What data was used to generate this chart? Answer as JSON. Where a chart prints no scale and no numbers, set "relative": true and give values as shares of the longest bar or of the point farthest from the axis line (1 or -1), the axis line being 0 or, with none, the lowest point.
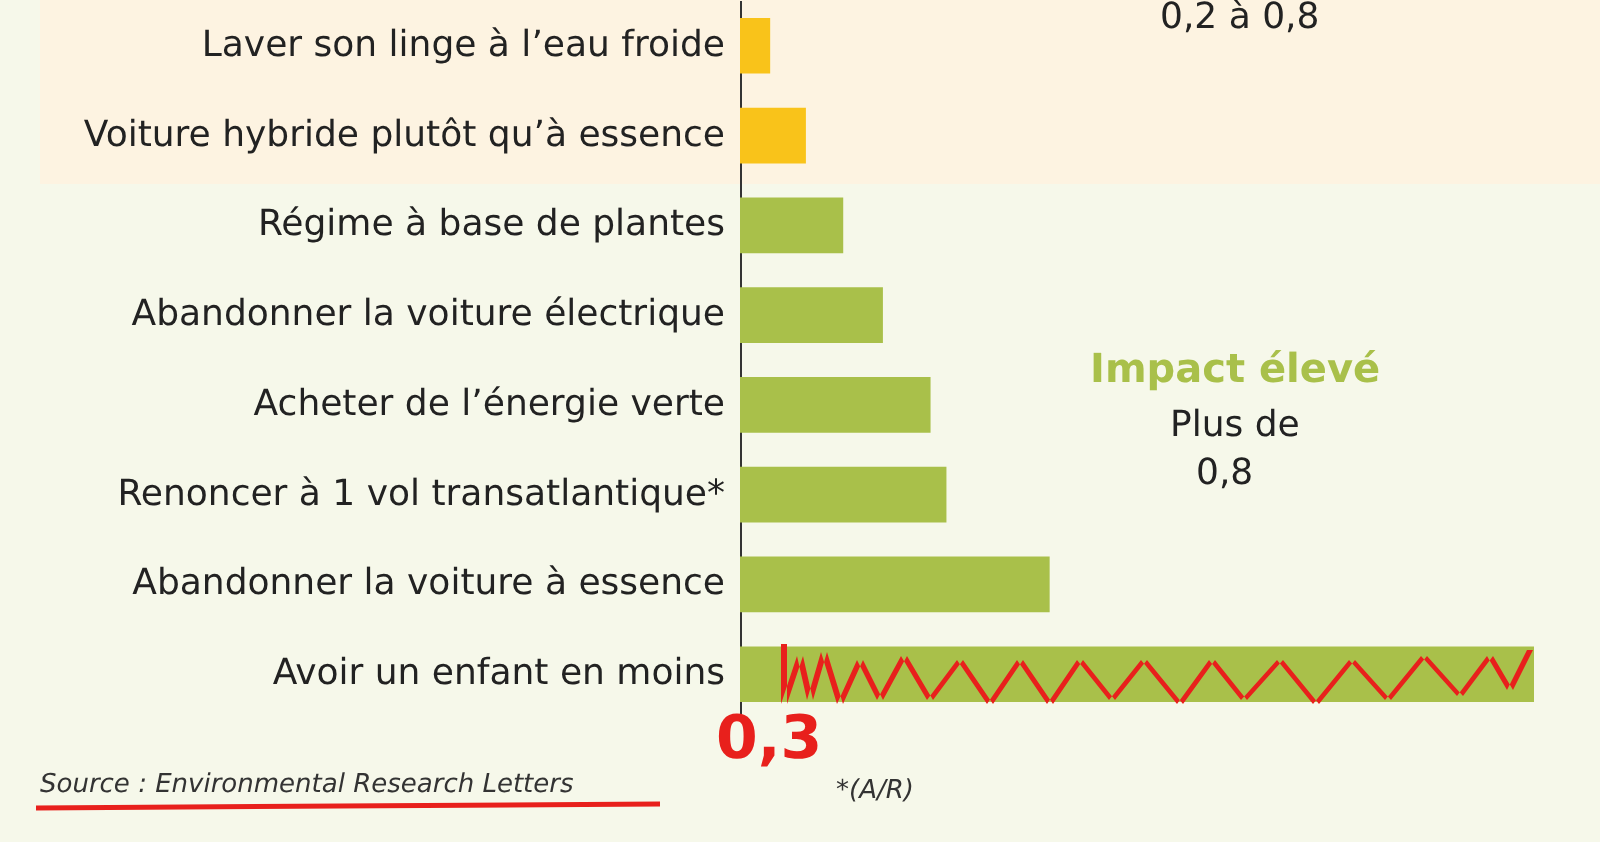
{
  "chart_data": {
    "type": "bar",
    "orientation": "horizontal",
    "relative": true,
    "categories": [
      "Laver son linge à l’eau froide",
      "Voiture hybride plutôt qu’à essence",
      "Régime à base de plantes",
      "Abandonner la voiture électrique",
      "Acheter de l’énergie verte",
      "Renoncer à 1 vol transatlantique*",
      "Abandonner la voiture à essence",
      "Avoir un enfant en moins"
    ],
    "values": [
      0.038,
      0.083,
      0.13,
      0.18,
      0.24,
      0.26,
      0.39,
      1
    ],
    "colors": [
      "#f9c31a",
      "#f9c31a",
      "#a9c04a",
      "#a9c04a",
      "#a9c04a",
      "#a9c04a",
      "#a9c04a",
      "#a9c04a"
    ],
    "annotations": [
      "0,2 à 0,8",
      "Impact élevé",
      "Plus de",
      "0,8",
      "0,3",
      "*(A/R)",
      "Source : Environmental Research Letters"
    ]
  }
}
